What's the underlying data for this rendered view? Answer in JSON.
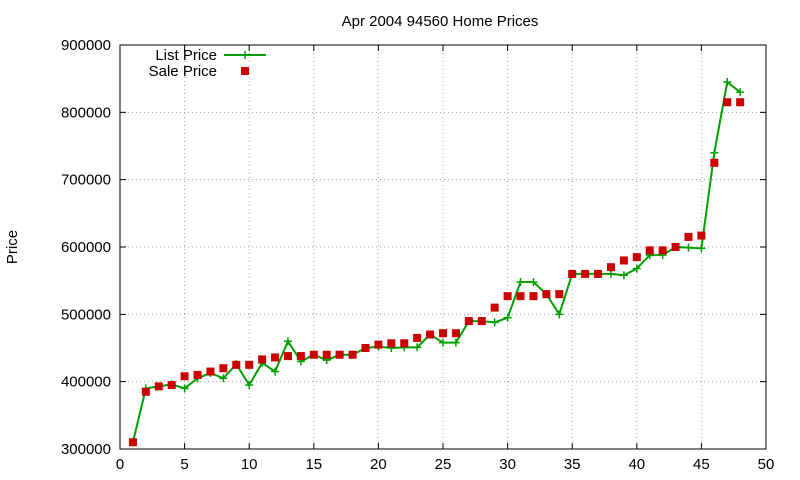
{
  "chart_data": {
    "type": "line",
    "title": "Apr 2004 94560 Home Prices",
    "xlabel": "",
    "ylabel": "Price",
    "xlim": [
      0,
      50
    ],
    "ylim": [
      300000,
      900000
    ],
    "xticks": [
      0,
      5,
      10,
      15,
      20,
      25,
      30,
      35,
      40,
      45,
      50
    ],
    "yticks": [
      300000,
      400000,
      500000,
      600000,
      700000,
      800000,
      900000
    ],
    "grid": true,
    "legend_position": "top-left",
    "series": [
      {
        "name": "List Price",
        "style": "line+points",
        "color": "#00a000",
        "marker": "plus",
        "x": [
          1,
          2,
          3,
          4,
          5,
          6,
          7,
          8,
          9,
          10,
          11,
          12,
          13,
          14,
          15,
          16,
          17,
          18,
          19,
          20,
          21,
          22,
          23,
          24,
          25,
          26,
          27,
          28,
          29,
          30,
          31,
          32,
          33,
          34,
          35,
          36,
          37,
          38,
          39,
          40,
          41,
          42,
          43,
          44,
          45,
          46,
          47,
          48
        ],
        "y": [
          310000,
          390000,
          393000,
          396000,
          390000,
          405000,
          413000,
          405000,
          426000,
          395000,
          428000,
          415000,
          460000,
          430000,
          440000,
          432000,
          440000,
          440000,
          450000,
          452000,
          450000,
          451000,
          451000,
          470000,
          458000,
          458000,
          490000,
          490000,
          488000,
          495000,
          548000,
          548000,
          530000,
          500000,
          560000,
          560000,
          560000,
          560000,
          558000,
          568000,
          588000,
          588000,
          600000,
          599000,
          598000,
          740000,
          845000,
          830000
        ]
      },
      {
        "name": "Sale Price",
        "style": "points",
        "color": "#cc0000",
        "marker": "square",
        "x": [
          1,
          2,
          3,
          4,
          5,
          6,
          7,
          8,
          9,
          10,
          11,
          12,
          13,
          14,
          15,
          16,
          17,
          18,
          19,
          20,
          21,
          22,
          23,
          24,
          25,
          26,
          27,
          28,
          29,
          30,
          31,
          32,
          33,
          34,
          35,
          36,
          37,
          38,
          39,
          40,
          41,
          42,
          43,
          44,
          45,
          46,
          47,
          48
        ],
        "y": [
          310000,
          385000,
          393000,
          395000,
          408000,
          410000,
          415000,
          420000,
          425000,
          425000,
          433000,
          436000,
          438000,
          438000,
          440000,
          440000,
          440000,
          440000,
          450000,
          455000,
          457000,
          457000,
          465000,
          470000,
          472000,
          472000,
          490000,
          490000,
          510000,
          527000,
          527000,
          527000,
          530000,
          530000,
          560000,
          560000,
          560000,
          570000,
          580000,
          585000,
          595000,
          595000,
          600000,
          615000,
          617000,
          725000,
          815000,
          815000
        ]
      }
    ]
  }
}
